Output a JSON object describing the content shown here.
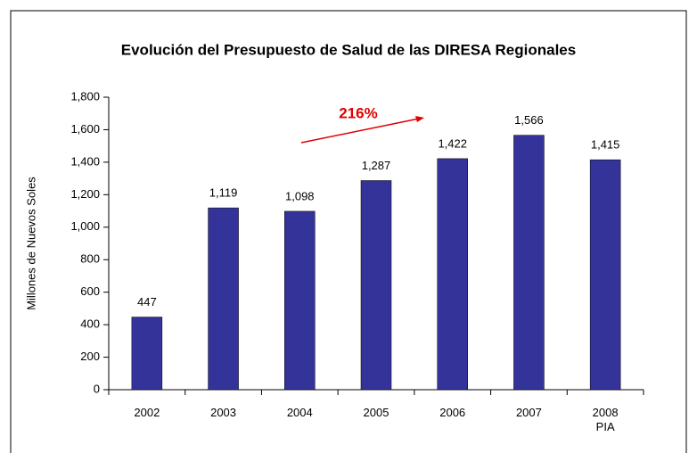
{
  "chart_data": {
    "type": "bar",
    "title": "Evolución del Presupuesto de Salud de las DIRESA Regionales",
    "y_label": "Millones de Nuevos Soles",
    "annotation": "216%",
    "categories": [
      "2002",
      "2003",
      "2004",
      "2005",
      "2006",
      "2007",
      "2008\nPIA"
    ],
    "values": [
      447,
      1119,
      1098,
      1287,
      1422,
      1566,
      1415
    ],
    "value_labels": [
      "447",
      "1,119",
      "1,098",
      "1,287",
      "1,422",
      "1,566",
      "1,415"
    ],
    "color": "#333399",
    "ylim": [
      0,
      1800
    ],
    "yticks": [
      0,
      200,
      400,
      600,
      800,
      {
        "value": 1000,
        "label": "1,000"
      },
      {
        "value": 1200,
        "label": "1,200"
      },
      {
        "value": 1400,
        "label": "1,400"
      },
      {
        "value": 1600,
        "label": "1,600"
      },
      {
        "value": 1800,
        "label": "1,800"
      }
    ],
    "grid": false
  }
}
